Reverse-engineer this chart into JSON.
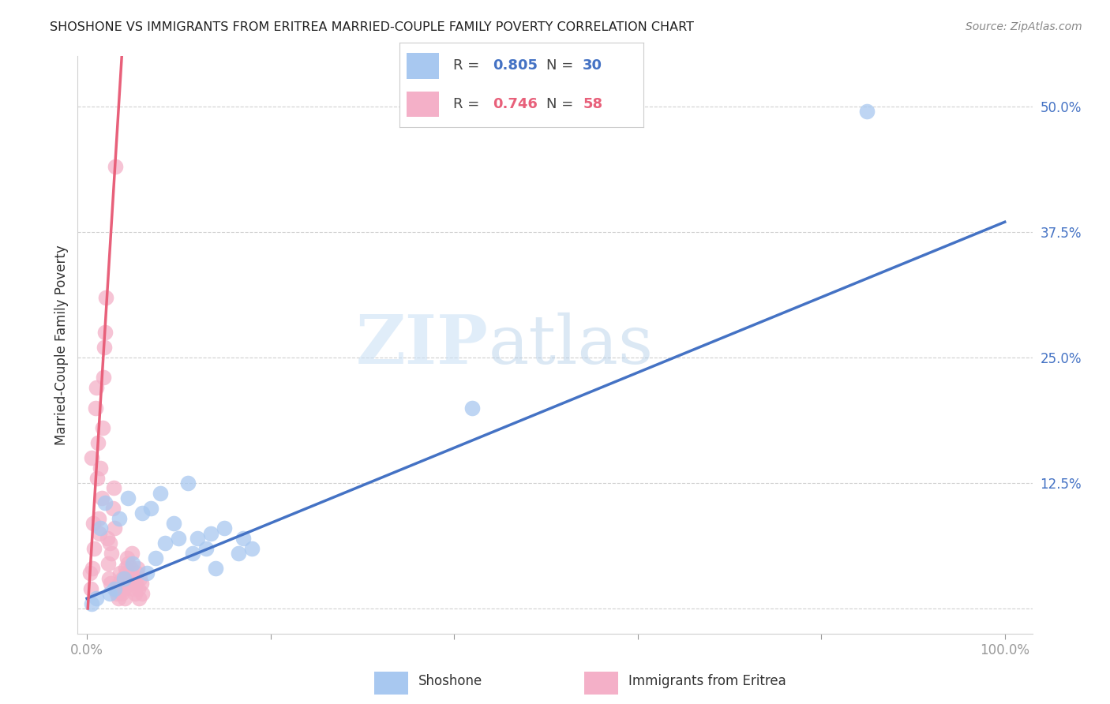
{
  "title": "SHOSHONE VS IMMIGRANTS FROM ERITREA MARRIED-COUPLE FAMILY POVERTY CORRELATION CHART",
  "source": "Source: ZipAtlas.com",
  "ylabel": "Married-Couple Family Poverty",
  "shoshone_color": "#a8c8f0",
  "eritrea_color": "#f4b0c8",
  "shoshone_line_color": "#4472C4",
  "eritrea_line_color": "#E8607A",
  "legend_shoshone_R": "0.805",
  "legend_shoshone_N": "30",
  "legend_eritrea_R": "0.746",
  "legend_eritrea_N": "58",
  "watermark_zip": "ZIP",
  "watermark_atlas": "atlas",
  "ytick_values": [
    0,
    12.5,
    25.0,
    37.5,
    50.0
  ],
  "xtick_values": [
    0,
    20,
    40,
    60,
    80,
    100
  ],
  "xlim": [
    -1,
    103
  ],
  "ylim": [
    -2.5,
    55
  ],
  "shoshone_scatter_x": [
    1.5,
    2.0,
    3.5,
    4.5,
    6.0,
    7.0,
    8.0,
    9.5,
    11.0,
    12.0,
    13.5,
    15.0,
    16.5,
    18.0,
    42.0,
    85.0,
    0.5,
    1.0,
    2.5,
    3.0,
    4.0,
    5.0,
    6.5,
    7.5,
    8.5,
    10.0,
    11.5,
    13.0,
    14.0,
    17.0
  ],
  "shoshone_scatter_y": [
    8.0,
    10.5,
    9.0,
    11.0,
    9.5,
    10.0,
    11.5,
    8.5,
    12.5,
    7.0,
    7.5,
    8.0,
    5.5,
    6.0,
    20.0,
    49.5,
    0.5,
    1.0,
    1.5,
    2.0,
    3.0,
    4.5,
    3.5,
    5.0,
    6.5,
    7.0,
    5.5,
    6.0,
    4.0,
    7.0
  ],
  "eritrea_scatter_x": [
    0.3,
    0.4,
    0.5,
    0.6,
    0.7,
    0.8,
    0.9,
    1.0,
    1.1,
    1.2,
    1.3,
    1.4,
    1.5,
    1.6,
    1.7,
    1.8,
    1.9,
    2.0,
    2.1,
    2.2,
    2.3,
    2.4,
    2.5,
    2.6,
    2.7,
    2.8,
    2.9,
    3.0,
    3.1,
    3.2,
    3.3,
    3.4,
    3.5,
    3.6,
    3.7,
    3.8,
    3.9,
    4.0,
    4.1,
    4.2,
    4.3,
    4.4,
    4.5,
    4.6,
    4.7,
    4.8,
    4.9,
    5.0,
    5.1,
    5.2,
    5.3,
    5.4,
    5.5,
    5.6,
    5.7,
    5.8,
    5.9,
    6.0
  ],
  "eritrea_scatter_y": [
    3.5,
    2.0,
    15.0,
    4.0,
    8.5,
    6.0,
    20.0,
    22.0,
    13.0,
    16.5,
    9.0,
    7.5,
    14.0,
    11.0,
    18.0,
    23.0,
    26.0,
    27.5,
    31.0,
    7.0,
    4.5,
    3.0,
    6.5,
    2.5,
    5.5,
    10.0,
    12.0,
    8.0,
    44.0,
    2.0,
    1.5,
    1.0,
    2.5,
    3.5,
    2.0,
    1.5,
    3.0,
    2.0,
    1.0,
    4.0,
    3.5,
    5.0,
    4.5,
    3.0,
    2.5,
    4.0,
    5.5,
    3.0,
    2.0,
    1.5,
    2.5,
    3.5,
    4.0,
    2.0,
    1.0,
    3.0,
    2.5,
    1.5
  ],
  "shoshone_regr_x0": 0,
  "shoshone_regr_y0": 1.0,
  "shoshone_regr_x1": 100,
  "shoshone_regr_y1": 38.5,
  "eritrea_regr_x0": 0.1,
  "eritrea_regr_y0": 0,
  "eritrea_regr_x1": 3.8,
  "eritrea_regr_y1": 55
}
